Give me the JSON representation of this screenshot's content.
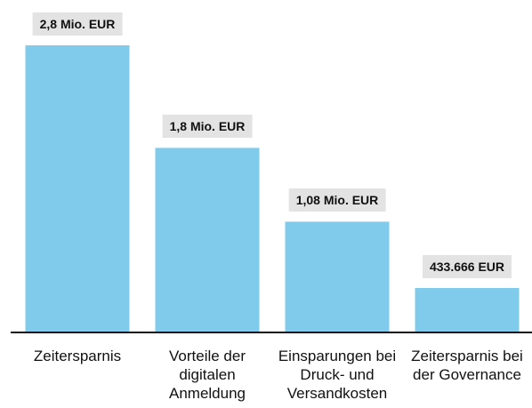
{
  "chart_data": {
    "type": "bar",
    "categories": [
      "Zeitersparnis",
      "Vorteile der digitalen Anmeldung",
      "Einsparungen bei Druck- und Versandkosten",
      "Zeitersparnis bei der Governance"
    ],
    "values": [
      2800000,
      1800000,
      1080000,
      433666
    ],
    "value_labels": [
      "2,8 Mio. EUR",
      "1,8 Mio. EUR",
      "1,08 Mio. EUR",
      "433.666 EUR"
    ],
    "color": "#80cbeb"
  }
}
